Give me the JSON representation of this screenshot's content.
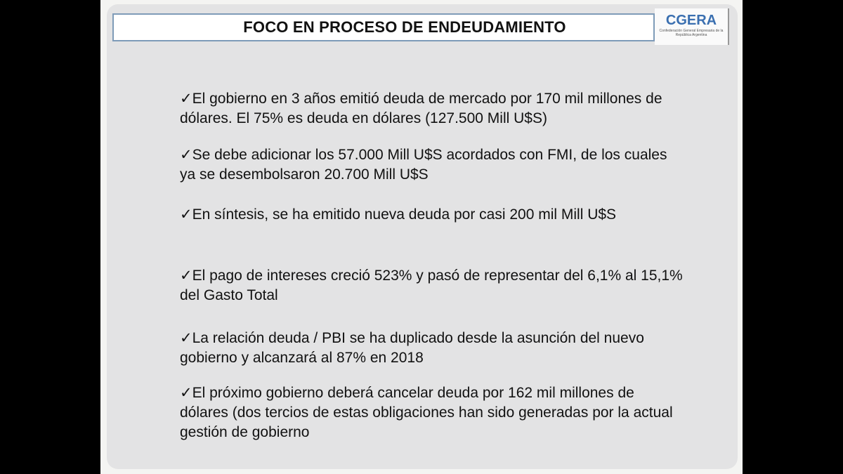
{
  "slide": {
    "title": "FOCO EN PROCESO DE ENDEUDAMIENTO",
    "logo": {
      "brand": "CGERA",
      "subtitle": "Confederación General Empresaria de la República Argentina"
    },
    "bullets": [
      "✓El gobierno en 3 años emitió deuda de mercado por 170 mil millones de dólares. El 75% es deuda en dólares (127.500 Mill U$S)",
      "✓Se debe adicionar los 57.000 Mill U$S acordados con FMI, de los cuales ya se desembolsaron 20.700 Mill U$S",
      "✓En síntesis, se ha emitido nueva deuda por casi 200 mil Mill U$S",
      "✓El pago de intereses creció 523% y pasó de representar del 6,1% al 15,1% del Gasto Total",
      "✓La relación deuda / PBI se ha duplicado desde la asunción del nuevo gobierno y alcanzará al 87% en 2018",
      "✓El próximo gobierno deberá cancelar deuda por 162 mil millones de dólares (dos tercios de estas obligaciones han sido generadas por la actual gestión de gobierno"
    ]
  }
}
